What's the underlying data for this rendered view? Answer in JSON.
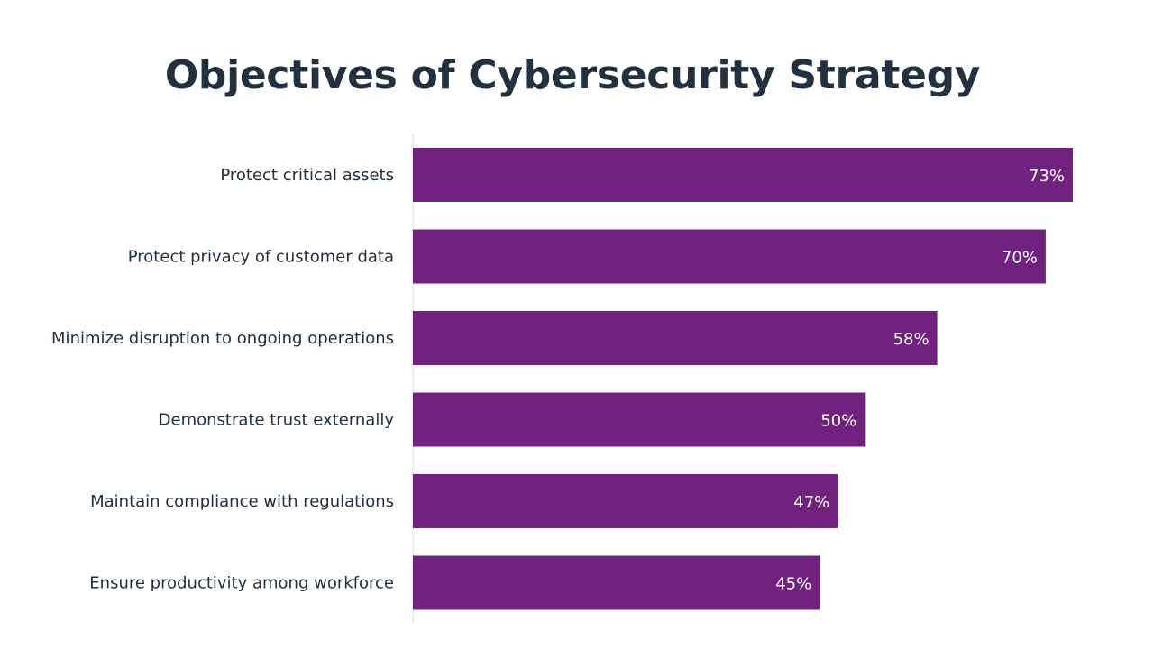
{
  "chart_data": {
    "type": "bar",
    "orientation": "horizontal",
    "title": "Objectives of Cybersecurity Strategy",
    "categories": [
      "Protect critical assets",
      "Protect privacy of customer data",
      "Minimize disruption to ongoing operations",
      "Demonstrate trust externally",
      "Maintain compliance with regulations",
      "Ensure productivity among workforce"
    ],
    "values": [
      73,
      70,
      58,
      50,
      47,
      45
    ],
    "value_labels": [
      "73%",
      "70%",
      "58%",
      "50%",
      "47%",
      "45%"
    ],
    "xlim": [
      0,
      73
    ],
    "bar_color": "#71217e",
    "axis_color": "#d9d9d9",
    "text_color": "#22303f",
    "value_label_color": "#ffffff",
    "grid": false,
    "legend": "none"
  }
}
